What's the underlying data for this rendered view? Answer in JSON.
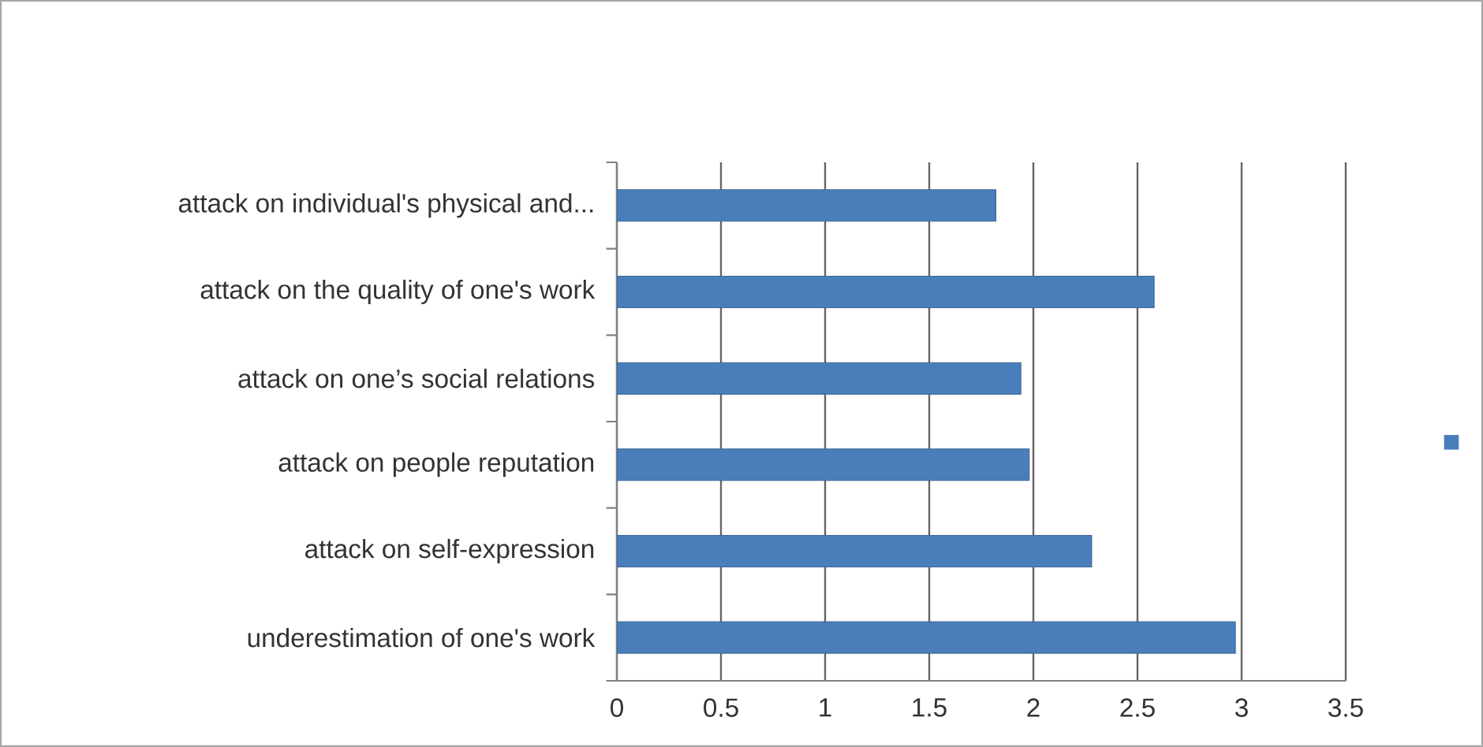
{
  "chart_data": {
    "type": "bar",
    "orientation": "horizontal",
    "categories": [
      "attack on  individual's physical and...",
      "attack on the quality of one's  work",
      "attack  on one’s social relations",
      "attack on people reputation",
      "attack on self-expression",
      "underestimation of one's work"
    ],
    "series": [
      {
        "color": "#4a7ebb",
        "values": [
          1.82,
          2.58,
          1.94,
          1.98,
          2.28,
          2.97
        ]
      }
    ],
    "xlim": [
      0,
      3.5
    ],
    "xticks": [
      0,
      0.5,
      1,
      1.5,
      2,
      2.5,
      3,
      3.5
    ],
    "grid": "x"
  }
}
